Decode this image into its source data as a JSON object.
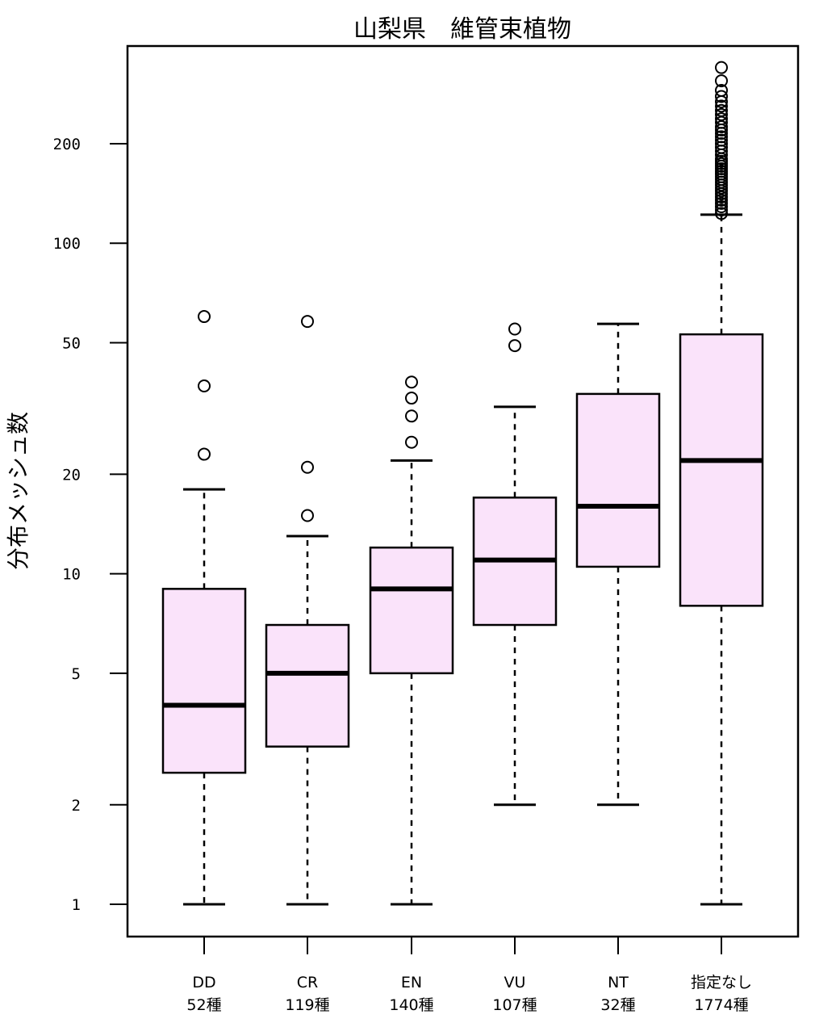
{
  "chart_data": {
    "type": "boxplot",
    "title": "山梨県　維管束植物",
    "ylabel": "分布メッシュ数",
    "xlabel": "",
    "y_scale": "log",
    "ylim": [
      0.78,
      420
    ],
    "y_ticks": [
      1,
      2,
      5,
      10,
      20,
      50,
      100,
      200
    ],
    "box_color": "#fae3fa",
    "line_color": "#000000",
    "grid": false,
    "legend": "none",
    "categories": [
      {
        "label": "DD",
        "count": "52種",
        "whisker_low": 1,
        "q1": 2.5,
        "median": 4,
        "q3": 9,
        "whisker_high": 18,
        "outliers": [
          23,
          37,
          60
        ]
      },
      {
        "label": "CR",
        "count": "119種",
        "whisker_low": 1,
        "q1": 3,
        "median": 5,
        "q3": 7,
        "whisker_high": 13,
        "outliers": [
          15,
          21,
          58
        ]
      },
      {
        "label": "EN",
        "count": "140種",
        "whisker_low": 1,
        "q1": 5,
        "median": 9,
        "q3": 12,
        "whisker_high": 22,
        "outliers": [
          25,
          30,
          34,
          38
        ]
      },
      {
        "label": "VU",
        "count": "107種",
        "whisker_low": 2,
        "q1": 7,
        "median": 11,
        "q3": 17,
        "whisker_high": 32,
        "outliers": [
          49,
          55
        ]
      },
      {
        "label": "NT",
        "count": "32種",
        "whisker_low": 2,
        "q1": 10.5,
        "median": 16,
        "q3": 35,
        "whisker_high": 57,
        "outliers": []
      },
      {
        "label": "指定なし",
        "count": "1774種",
        "whisker_low": 1,
        "q1": 8,
        "median": 22,
        "q3": 53,
        "whisker_high": 122,
        "outliers": [
          123,
          126,
          129,
          132,
          135,
          138,
          141,
          144,
          147,
          150,
          153,
          156,
          159,
          162,
          165,
          168,
          171,
          174,
          177,
          180,
          185,
          190,
          195,
          200,
          205,
          210,
          215,
          220,
          225,
          232,
          238,
          245,
          252,
          260,
          268,
          278,
          290,
          310,
          340
        ]
      }
    ]
  }
}
